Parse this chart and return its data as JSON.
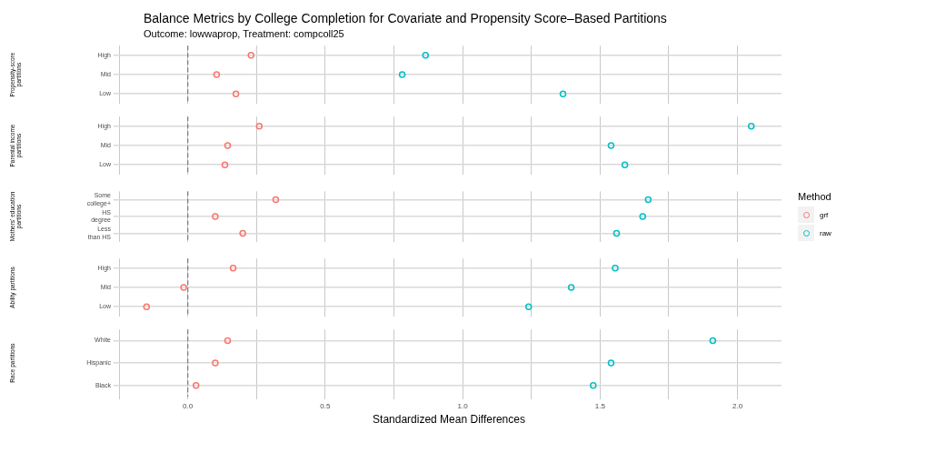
{
  "chart_data": [
    {
      "type": "scatter",
      "orientation": "horizontal",
      "title": "Balance Metrics by College Completion for Covariate and Propensity Score–Based Partitions",
      "subtitle": "Outcome: lowwaprop, Treatment: compcoll25",
      "ylabel": "Propensity-score partitions",
      "categories": [
        "High",
        "Mid",
        "Low"
      ],
      "series": [
        {
          "color": "#f8766d",
          "values": [
            0.23,
            0.105,
            0.175
          ]
        },
        {
          "color": "#00bfc4",
          "values": [
            0.865,
            0.78,
            1.365
          ]
        }
      ],
      "xlim": [
        -0.26,
        2.16
      ],
      "xticks": [
        -0.25,
        0,
        0.25,
        0.5,
        0.75,
        1,
        1.25,
        1.5,
        1.75,
        2
      ],
      "grid": true,
      "marker": "circle",
      "tick_labels": "y",
      "ref_lines": [
        {
          "axis": "x",
          "value": 0,
          "line_style": "dashed",
          "color": "#7f7f7f"
        }
      ]
    },
    {
      "type": "scatter",
      "orientation": "horizontal",
      "ylabel": "Parental income partitions",
      "categories": [
        "High",
        "Mid",
        "Low"
      ],
      "series": [
        {
          "color": "#f8766d",
          "values": [
            0.26,
            0.145,
            0.135
          ]
        },
        {
          "color": "#00bfc4",
          "values": [
            2.05,
            1.54,
            1.59
          ]
        }
      ],
      "xlim": [
        -0.26,
        2.16
      ],
      "xticks": [
        -0.25,
        0,
        0.25,
        0.5,
        0.75,
        1,
        1.25,
        1.5,
        1.75,
        2
      ],
      "grid": true,
      "marker": "circle",
      "tick_labels": "y",
      "ref_lines": [
        {
          "axis": "x",
          "value": 0,
          "line_style": "dashed",
          "color": "#7f7f7f"
        }
      ]
    },
    {
      "type": "scatter",
      "orientation": "horizontal",
      "ylabel": "Mothers' education partitions",
      "categories": [
        "Some college+",
        "HS degree",
        "Less than HS"
      ],
      "series": [
        {
          "name": "grf",
          "color": "#f8766d",
          "values": [
            0.32,
            0.1,
            0.2
          ]
        },
        {
          "name": "raw",
          "color": "#00bfc4",
          "values": [
            1.675,
            1.655,
            1.56
          ]
        }
      ],
      "xlim": [
        -0.26,
        2.16
      ],
      "xticks": [
        -0.25,
        0,
        0.25,
        0.5,
        0.75,
        1,
        1.25,
        1.5,
        1.75,
        2
      ],
      "grid": true,
      "marker": "circle",
      "tick_labels": "y",
      "legend": "right",
      "legend_title": "Method",
      "ref_lines": [
        {
          "axis": "x",
          "value": 0,
          "line_style": "dashed",
          "color": "#7f7f7f"
        }
      ]
    },
    {
      "type": "scatter",
      "orientation": "horizontal",
      "ylabel": "Ability partitions",
      "categories": [
        "High",
        "Mid",
        "Low"
      ],
      "series": [
        {
          "color": "#f8766d",
          "values": [
            0.165,
            -0.015,
            -0.15
          ]
        },
        {
          "color": "#00bfc4",
          "values": [
            1.555,
            1.395,
            1.24
          ]
        }
      ],
      "xlim": [
        -0.26,
        2.16
      ],
      "xticks": [
        -0.25,
        0,
        0.25,
        0.5,
        0.75,
        1,
        1.25,
        1.5,
        1.75,
        2
      ],
      "grid": true,
      "marker": "circle",
      "tick_labels": "y",
      "ref_lines": [
        {
          "axis": "x",
          "value": 0,
          "line_style": "dashed",
          "color": "#7f7f7f"
        }
      ]
    },
    {
      "type": "scatter",
      "orientation": "horizontal",
      "ylabel": "Race partitions",
      "xlabel": "Standardized Mean Differences",
      "categories": [
        "White",
        "Hispanic",
        "Black"
      ],
      "series": [
        {
          "color": "#f8766d",
          "values": [
            0.145,
            0.1,
            0.03
          ]
        },
        {
          "color": "#00bfc4",
          "values": [
            1.91,
            1.54,
            1.475
          ]
        }
      ],
      "xlim": [
        -0.26,
        2.16
      ],
      "xticks": [
        {
          "value": -0.25,
          "label": null
        },
        {
          "value": 0,
          "label": "0.0"
        },
        {
          "value": 0.25,
          "label": null
        },
        0.5,
        {
          "value": 0.75,
          "label": null
        },
        {
          "value": 1,
          "label": "1.0"
        },
        {
          "value": 1.25,
          "label": null
        },
        1.5,
        {
          "value": 1.75,
          "label": null
        },
        {
          "value": 2,
          "label": "2.0"
        }
      ],
      "grid": true,
      "marker": "circle",
      "ref_lines": [
        {
          "axis": "x",
          "value": 0,
          "line_style": "dashed",
          "color": "#7f7f7f"
        }
      ]
    }
  ]
}
